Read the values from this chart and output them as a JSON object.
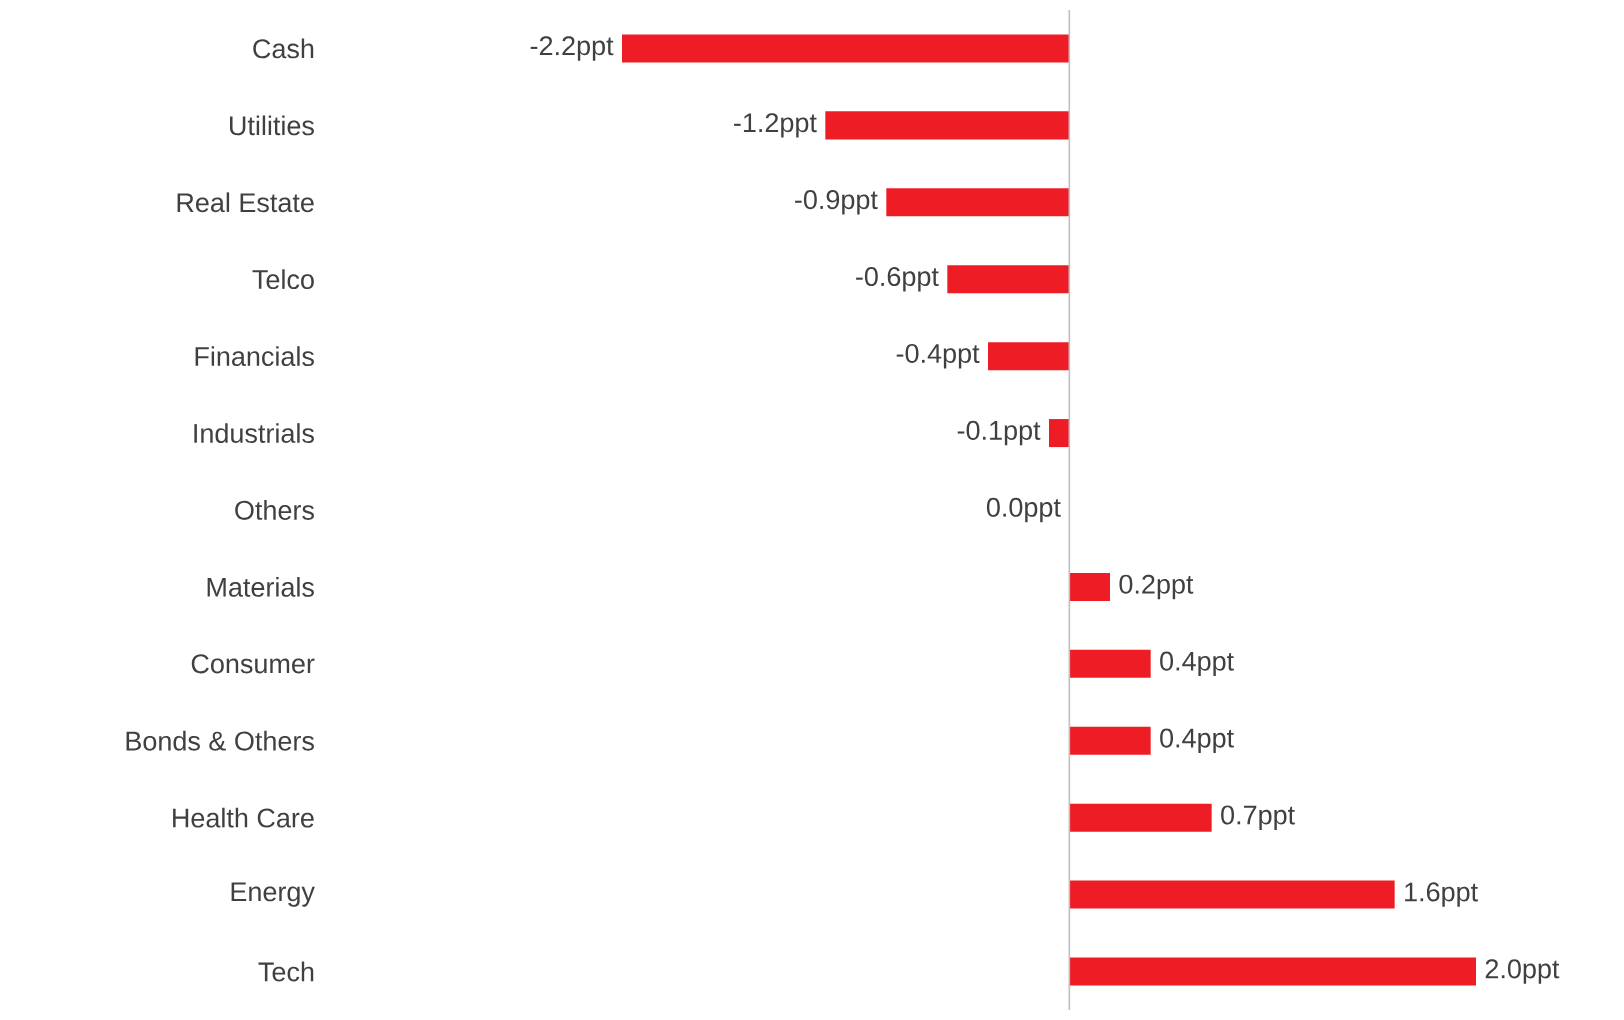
{
  "chart_data": {
    "type": "bar",
    "orientation": "horizontal",
    "categories": [
      "Cash",
      "Utilities",
      "Real Estate",
      "Telco",
      "Financials",
      "Industrials",
      "Others",
      "Materials",
      "Consumer",
      "Bonds & Others",
      "Health Care",
      "Energy",
      "Tech"
    ],
    "values": [
      -2.2,
      -1.2,
      -0.9,
      -0.6,
      -0.4,
      -0.1,
      0.0,
      0.2,
      0.4,
      0.4,
      0.7,
      1.6,
      2.0
    ],
    "value_labels": [
      "-2.2ppt",
      "-1.2ppt",
      "-0.9ppt",
      "-0.6ppt",
      "-0.4ppt",
      "-0.1ppt",
      "0.0ppt",
      "0.2ppt",
      "0.4ppt",
      "0.4ppt",
      "0.7ppt",
      "1.6ppt",
      "2.0ppt"
    ],
    "color": "#ee1c25",
    "xlim": [
      -2.2,
      2.0
    ],
    "tick_labels": "y"
  }
}
